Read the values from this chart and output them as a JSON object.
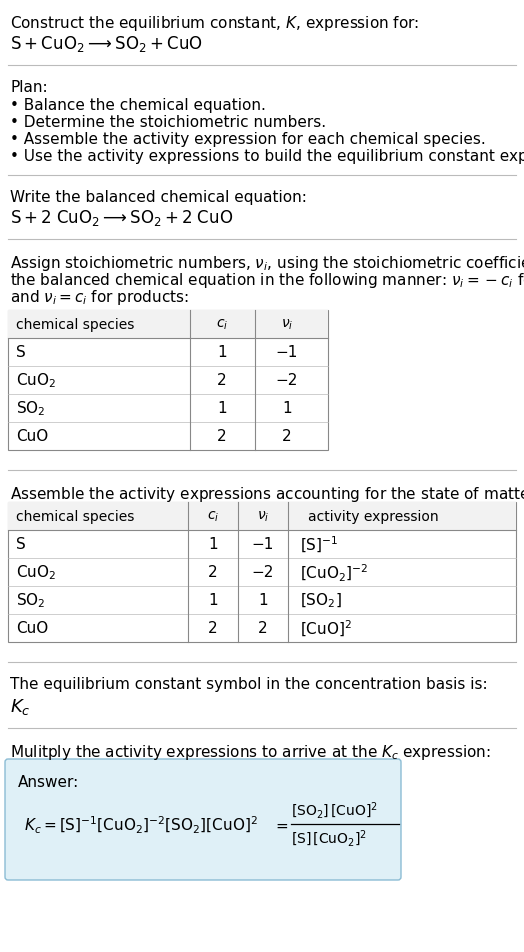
{
  "title_line1": "Construct the equilibrium constant, $K$, expression for:",
  "title_line2": "$\\mathrm{S + CuO_2 \\longrightarrow SO_2 + CuO}$",
  "plan_header": "Plan:",
  "plan_items": [
    "• Balance the chemical equation.",
    "• Determine the stoichiometric numbers.",
    "• Assemble the activity expression for each chemical species.",
    "• Use the activity expressions to build the equilibrium constant expression."
  ],
  "balanced_header": "Write the balanced chemical equation:",
  "balanced_eq": "$\\mathrm{S + 2\\;CuO_2 \\longrightarrow SO_2 + 2\\;CuO}$",
  "stoich_intro_lines": [
    "Assign stoichiometric numbers, $\\nu_i$, using the stoichiometric coefficients, $c_i$, from",
    "the balanced chemical equation in the following manner: $\\nu_i = -c_i$ for reactants",
    "and $\\nu_i = c_i$ for products:"
  ],
  "table1_headers": [
    "chemical species",
    "$c_i$",
    "$\\nu_i$"
  ],
  "table1_rows": [
    [
      "S",
      "1",
      "−1"
    ],
    [
      "$\\mathrm{CuO_2}$",
      "2",
      "−2"
    ],
    [
      "$\\mathrm{SO_2}$",
      "1",
      "1"
    ],
    [
      "CuO",
      "2",
      "2"
    ]
  ],
  "activity_intro": "Assemble the activity expressions accounting for the state of matter and $\\nu_i$:",
  "table2_headers": [
    "chemical species",
    "$c_i$",
    "$\\nu_i$",
    "activity expression"
  ],
  "table2_rows": [
    [
      "S",
      "1",
      "−1",
      "$[\\mathrm{S}]^{-1}$"
    ],
    [
      "$\\mathrm{CuO_2}$",
      "2",
      "−2",
      "$[\\mathrm{CuO_2}]^{-2}$"
    ],
    [
      "$\\mathrm{SO_2}$",
      "1",
      "1",
      "$[\\mathrm{SO_2}]$"
    ],
    [
      "CuO",
      "2",
      "2",
      "$[\\mathrm{CuO}]^2$"
    ]
  ],
  "kc_intro": "The equilibrium constant symbol in the concentration basis is:",
  "kc_symbol": "$K_c$",
  "multiply_intro": "Mulitply the activity expressions to arrive at the $K_c$ expression:",
  "answer_label": "Answer:",
  "answer_box_color": "#dff0f7",
  "answer_box_border": "#8bbcd4",
  "bg_color": "#ffffff",
  "text_color": "#000000",
  "separator_color": "#bbbbbb",
  "fontsize": 11
}
